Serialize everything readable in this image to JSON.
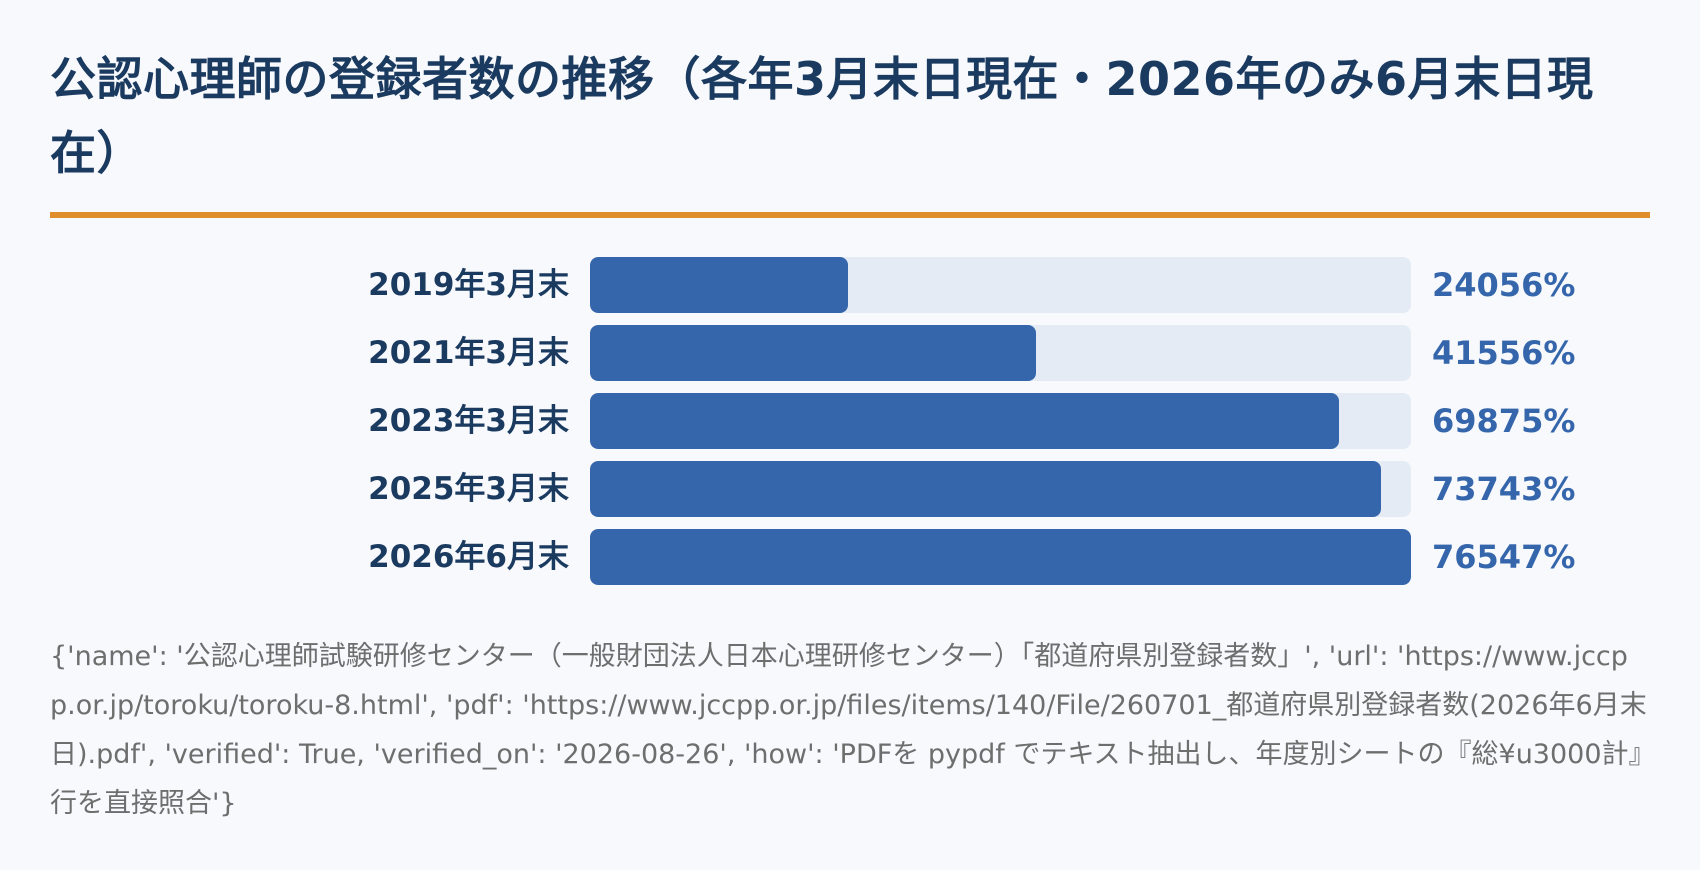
{
  "title": "公認心理師の登録者数の推移（各年3月末日現在・2026年のみ6月末日現在）",
  "accent_color": "#e08d2b",
  "bar_color": "#3566ac",
  "track_color": "#e5ebf5",
  "chart_data": {
    "type": "bar",
    "orientation": "horizontal",
    "categories": [
      "2019年3月末",
      "2021年3月末",
      "2023年3月末",
      "2025年3月末",
      "2026年6月末"
    ],
    "values": [
      24056,
      41556,
      69875,
      73743,
      76547
    ],
    "value_labels": [
      "24056%",
      "41556%",
      "69875%",
      "73743%",
      "76547%"
    ],
    "xlim": [
      0,
      76547
    ]
  },
  "source_text": "{'name': '公認心理師試験研修センター（一般財団法人日本心理研修センター）「都道府県別登録者数」', 'url': 'https://www.jccpp.or.jp/toroku/toroku-8.html', 'pdf': 'https://www.jccpp.or.jp/files/items/140/File/260701_都道府県別登録者数(2026年6月末日).pdf', 'verified': True, 'verified_on': '2026-08-26', 'how': 'PDFを pypdf でテキスト抽出し、年度別シートの『総¥u3000計』行を直接照合'}"
}
